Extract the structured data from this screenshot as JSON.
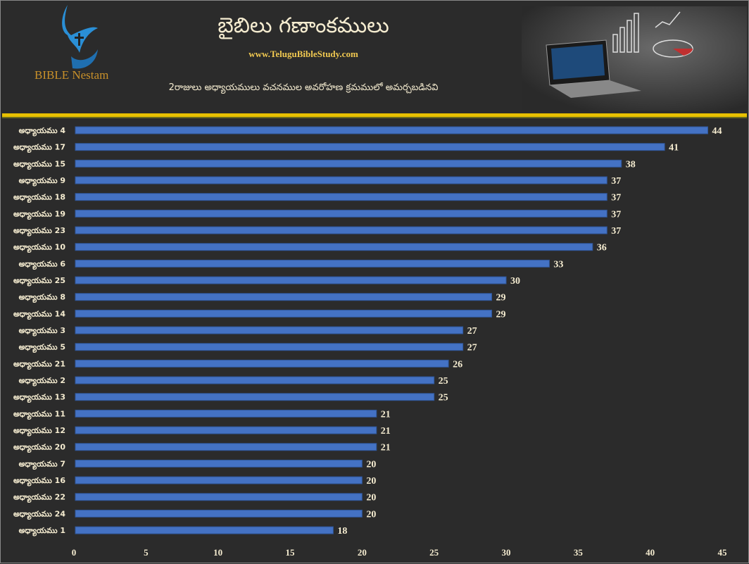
{
  "header": {
    "title": "బైబిలు గణాంకములు",
    "website": "www.TeluguBibleStudy.com",
    "subtitle": "2రాజులు అధ్యాయములు వచనముల అవరోహణ క్రమములో అమర్చబడినవి",
    "logo_text": "BIBLE Nestam"
  },
  "colors": {
    "background": "#2b2b2b",
    "bar": "#4472c4",
    "rule": "#e8c000",
    "text": "#f5ecd0"
  },
  "chart_data": {
    "type": "bar",
    "orientation": "horizontal",
    "categories": [
      "అధ్యాయము 4",
      "అధ్యాయము 17",
      "అధ్యాయము 15",
      "అధ్యాయము 9",
      "అధ్యాయము 18",
      "అధ్యాయము 19",
      "అధ్యాయము 23",
      "అధ్యాయము 10",
      "అధ్యాయము 6",
      "అధ్యాయము 25",
      "అధ్యాయము 8",
      "అధ్యాయము 14",
      "అధ్యాయము 3",
      "అధ్యాయము 5",
      "అధ్యాయము 21",
      "అధ్యాయము 2",
      "అధ్యాయము 13",
      "అధ్యాయము 11",
      "అధ్యాయము 12",
      "అధ్యాయము 20",
      "అధ్యాయము 7",
      "అధ్యాయము 16",
      "అధ్యాయము 22",
      "అధ్యాయము 24",
      "అధ్యాయము 1"
    ],
    "values": [
      44,
      41,
      38,
      37,
      37,
      37,
      37,
      36,
      33,
      30,
      29,
      29,
      27,
      27,
      26,
      25,
      25,
      21,
      21,
      21,
      20,
      20,
      20,
      20,
      18
    ],
    "xlim": [
      0,
      45
    ],
    "xticks": [
      0,
      5,
      10,
      15,
      20,
      25,
      30,
      35,
      40,
      45
    ],
    "data_labels": true,
    "grid": false
  }
}
